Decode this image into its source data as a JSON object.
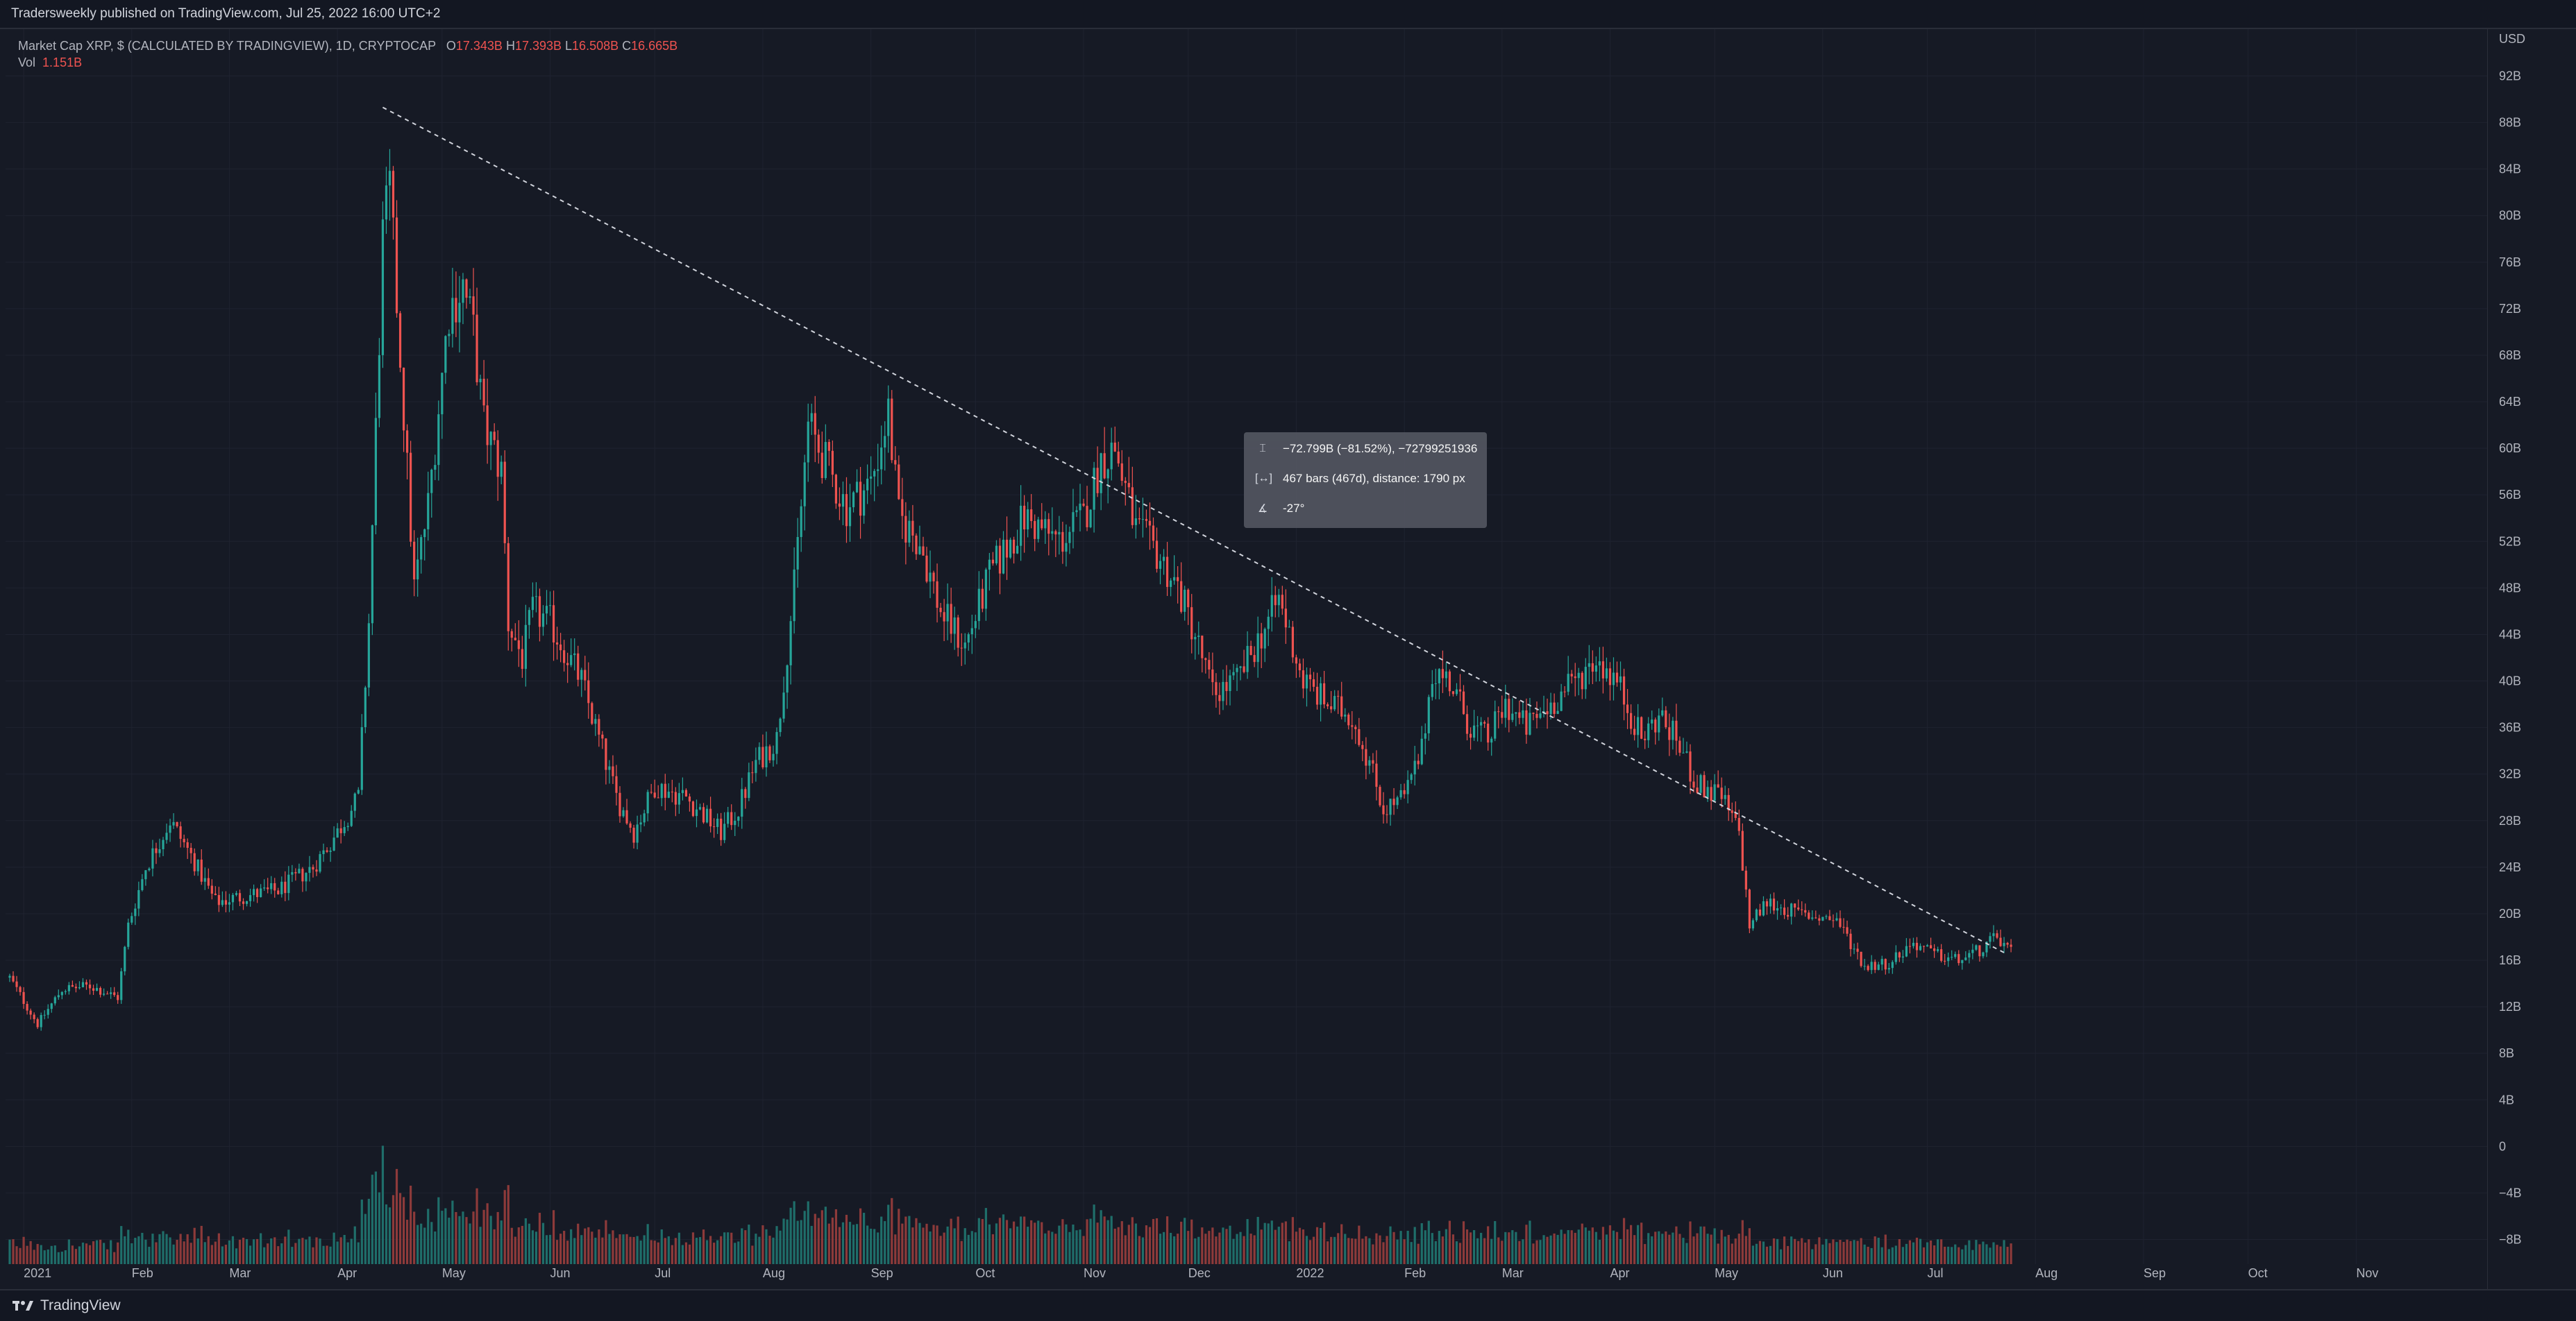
{
  "header": {
    "published_text": "Tradersweekly published on TradingView.com, Jul 25, 2022 16:00 UTC+2"
  },
  "legend": {
    "symbol_text": "Market Cap XRP, $ (CALCULATED BY TRADINGVIEW), 1D, CRYPTOCAP",
    "open_label": "O",
    "open_value": "17.343B",
    "high_label": "H",
    "high_value": "17.393B",
    "low_label": "L",
    "low_value": "16.508B",
    "close_label": "C",
    "close_value": "16.665B",
    "vol_label": "Vol",
    "vol_value": "1.151B"
  },
  "measure_tooltip": {
    "price_change": "−72.799B (−81.52%), −72799251936",
    "bars_distance": "467 bars (467d), distance: 1790 px",
    "angle": "-27°"
  },
  "footer": {
    "brand": "TradingView"
  },
  "colors": {
    "up": "#26a69a",
    "down": "#ef5350",
    "vol_up": "#1f6e6a",
    "vol_down": "#8d3a3a",
    "background": "#161a25",
    "grid": "#1f2330",
    "axis_text": "#b2b5be"
  },
  "chart_data": {
    "type": "candlestick",
    "title": "Market Cap XRP, $ (CALCULATED BY TRADINGVIEW), 1D, CRYPTOCAP",
    "currency": "USD",
    "y_ticks": [
      "92B",
      "88B",
      "84B",
      "80B",
      "76B",
      "72B",
      "68B",
      "64B",
      "60B",
      "56B",
      "52B",
      "48B",
      "44B",
      "40B",
      "36B",
      "32B",
      "28B",
      "24B",
      "20B",
      "16B",
      "12B",
      "8B",
      "4B",
      "0",
      "−4B",
      "−8B"
    ],
    "y_tick_values": [
      92,
      88,
      84,
      80,
      76,
      72,
      68,
      64,
      60,
      56,
      52,
      48,
      44,
      40,
      36,
      32,
      28,
      24,
      20,
      16,
      12,
      8,
      4,
      0,
      -4,
      -8
    ],
    "y_unit": "B",
    "x_ticks": [
      {
        "label": "2021",
        "date": "2021-01-01"
      },
      {
        "label": "Feb",
        "date": "2021-02-01"
      },
      {
        "label": "Mar",
        "date": "2021-03-01"
      },
      {
        "label": "Apr",
        "date": "2021-04-01"
      },
      {
        "label": "May",
        "date": "2021-05-01"
      },
      {
        "label": "Jun",
        "date": "2021-06-01"
      },
      {
        "label": "Jul",
        "date": "2021-07-01"
      },
      {
        "label": "Aug",
        "date": "2021-08-01"
      },
      {
        "label": "Sep",
        "date": "2021-09-01"
      },
      {
        "label": "Oct",
        "date": "2021-10-01"
      },
      {
        "label": "Nov",
        "date": "2021-11-01"
      },
      {
        "label": "Dec",
        "date": "2021-12-01"
      },
      {
        "label": "2022",
        "date": "2022-01-01"
      },
      {
        "label": "Feb",
        "date": "2022-02-01"
      },
      {
        "label": "Mar",
        "date": "2022-03-01"
      },
      {
        "label": "Apr",
        "date": "2022-04-01"
      },
      {
        "label": "May",
        "date": "2022-05-01"
      },
      {
        "label": "Jun",
        "date": "2022-06-01"
      },
      {
        "label": "Jul",
        "date": "2022-07-01"
      },
      {
        "label": "Aug",
        "date": "2022-08-01"
      },
      {
        "label": "Sep",
        "date": "2022-09-01"
      },
      {
        "label": "Oct",
        "date": "2022-10-01"
      },
      {
        "label": "Nov",
        "date": "2022-11-01"
      }
    ],
    "x_range": [
      "2020-12-28",
      "2022-11-30"
    ],
    "y_range": [
      -9,
      94
    ],
    "close_series": [
      [
        "2020-12-28",
        14.5
      ],
      [
        "2021-01-05",
        10.5
      ],
      [
        "2021-01-12",
        13.5
      ],
      [
        "2021-01-20",
        13.8
      ],
      [
        "2021-01-28",
        12.8
      ],
      [
        "2021-01-31",
        19
      ],
      [
        "2021-02-05",
        24
      ],
      [
        "2021-02-12",
        28
      ],
      [
        "2021-02-18",
        25
      ],
      [
        "2021-02-25",
        21
      ],
      [
        "2021-03-05",
        21.5
      ],
      [
        "2021-03-15",
        22
      ],
      [
        "2021-03-25",
        24
      ],
      [
        "2021-04-01",
        27
      ],
      [
        "2021-04-07",
        30
      ],
      [
        "2021-04-10",
        45
      ],
      [
        "2021-04-14",
        78
      ],
      [
        "2021-04-16",
        82
      ],
      [
        "2021-04-19",
        68
      ],
      [
        "2021-04-23",
        48
      ],
      [
        "2021-04-27",
        55
      ],
      [
        "2021-05-03",
        72
      ],
      [
        "2021-05-07",
        74
      ],
      [
        "2021-05-10",
        70
      ],
      [
        "2021-05-13",
        62
      ],
      [
        "2021-05-18",
        58
      ],
      [
        "2021-05-20",
        45
      ],
      [
        "2021-05-24",
        42
      ],
      [
        "2021-05-27",
        46
      ],
      [
        "2021-06-01",
        45
      ],
      [
        "2021-06-10",
        40
      ],
      [
        "2021-06-20",
        30
      ],
      [
        "2021-06-25",
        27
      ],
      [
        "2021-07-01",
        31
      ],
      [
        "2021-07-10",
        30
      ],
      [
        "2021-07-20",
        27
      ],
      [
        "2021-07-25",
        29
      ],
      [
        "2021-07-30",
        33
      ],
      [
        "2021-08-05",
        35
      ],
      [
        "2021-08-10",
        48
      ],
      [
        "2021-08-14",
        62
      ],
      [
        "2021-08-20",
        58
      ],
      [
        "2021-08-25",
        55
      ],
      [
        "2021-09-01",
        57
      ],
      [
        "2021-09-06",
        63
      ],
      [
        "2021-09-09",
        54
      ],
      [
        "2021-09-15",
        52
      ],
      [
        "2021-09-21",
        46
      ],
      [
        "2021-09-28",
        43
      ],
      [
        "2021-10-05",
        49
      ],
      [
        "2021-10-15",
        54
      ],
      [
        "2021-10-25",
        52
      ],
      [
        "2021-11-01",
        54
      ],
      [
        "2021-11-06",
        59
      ],
      [
        "2021-11-10",
        60
      ],
      [
        "2021-11-16",
        53
      ],
      [
        "2021-11-22",
        51
      ],
      [
        "2021-11-28",
        48
      ],
      [
        "2021-12-03",
        44
      ],
      [
        "2021-12-08",
        39
      ],
      [
        "2021-12-15",
        40
      ],
      [
        "2021-12-22",
        44
      ],
      [
        "2021-12-27",
        47
      ],
      [
        "2022-01-03",
        40
      ],
      [
        "2022-01-10",
        38
      ],
      [
        "2022-01-17",
        37
      ],
      [
        "2022-01-22",
        33
      ],
      [
        "2022-01-26",
        29
      ],
      [
        "2022-02-01",
        30
      ],
      [
        "2022-02-06",
        34
      ],
      [
        "2022-02-09",
        41
      ],
      [
        "2022-02-14",
        40
      ],
      [
        "2022-02-20",
        36
      ],
      [
        "2022-02-25",
        35
      ],
      [
        "2022-03-02",
        38
      ],
      [
        "2022-03-08",
        36
      ],
      [
        "2022-03-15",
        38
      ],
      [
        "2022-03-22",
        40
      ],
      [
        "2022-03-28",
        42
      ],
      [
        "2022-04-03",
        40
      ],
      [
        "2022-04-10",
        35
      ],
      [
        "2022-04-15",
        37
      ],
      [
        "2022-04-20",
        35
      ],
      [
        "2022-04-26",
        31
      ],
      [
        "2022-05-03",
        30
      ],
      [
        "2022-05-08",
        27
      ],
      [
        "2022-05-11",
        19
      ],
      [
        "2022-05-16",
        21
      ],
      [
        "2022-05-25",
        20
      ],
      [
        "2022-06-05",
        19.5
      ],
      [
        "2022-06-13",
        15.5
      ],
      [
        "2022-06-20",
        15.8
      ],
      [
        "2022-06-27",
        17.5
      ],
      [
        "2022-07-03",
        16.5
      ],
      [
        "2022-07-10",
        16
      ],
      [
        "2022-07-17",
        17
      ],
      [
        "2022-07-21",
        18
      ],
      [
        "2022-07-25",
        16.7
      ]
    ],
    "trendline": {
      "start": [
        "2021-04-14",
        89.3
      ],
      "end": [
        "2022-07-24",
        16.5
      ],
      "style": "dashed"
    },
    "volume_note": "volume histogram overlaid at bottom, scaled independently"
  }
}
